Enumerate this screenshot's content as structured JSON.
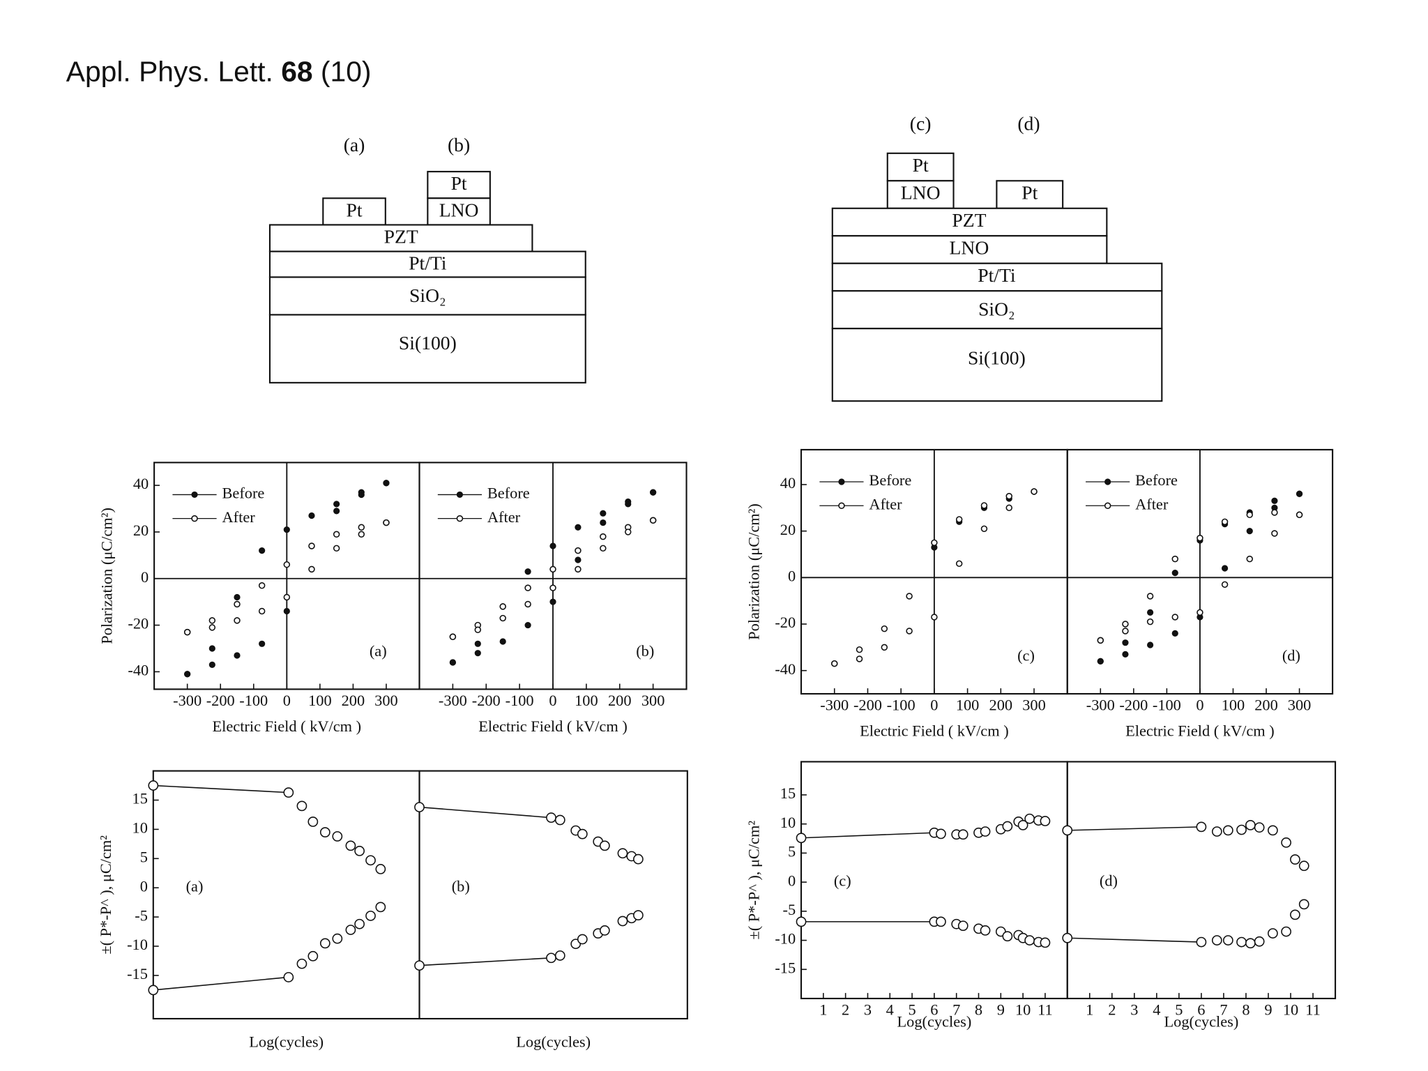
{
  "header": {
    "title_prefix": "Appl. Phys. Lett.",
    "title_volume": "68",
    "title_issue": "(10)"
  },
  "diagrams": [
    {
      "labels": [
        "(a)",
        "(b)"
      ],
      "boxes": [
        "Pt",
        "Pt",
        "LNO",
        "PZT",
        "Pt/Ti",
        "SiO₂",
        "Si(100)"
      ]
    },
    {
      "labels": [
        "(c)",
        "(d)"
      ],
      "boxes": [
        "Pt",
        "LNO",
        "Pt",
        "PZT",
        "LNO",
        "Pt/Ti",
        "SiO₂",
        "Si(100)"
      ]
    }
  ],
  "chart_data": [
    {
      "type": "scatter",
      "panel_label": "(a)",
      "xlabel": "Electric Field ( kV/cm )",
      "ylabel": "Polarization (μC/cm²)",
      "xlim": [
        -400,
        400
      ],
      "ylim": [
        -47.5,
        49.8
      ],
      "xticks": [
        -300,
        -200,
        -100,
        0,
        100,
        200,
        300
      ],
      "yticks": [
        -40,
        -20,
        0,
        20,
        40
      ],
      "legend": true,
      "series": [
        {
          "name": "Before",
          "marker": "filled",
          "color": "#111111",
          "x": [
            300,
            225,
            150,
            75,
            0,
            -75,
            -150,
            -225,
            -300,
            -300,
            -225,
            -150,
            -75,
            0,
            75,
            150,
            225,
            300
          ],
          "values": [
            41,
            37,
            32,
            27,
            21,
            12,
            -8,
            -30,
            -41,
            -41,
            -37,
            -33,
            -28,
            -14,
            14,
            29,
            36,
            41
          ]
        },
        {
          "name": "After",
          "marker": "open",
          "color": "#111111",
          "x": [
            300,
            225,
            150,
            75,
            0,
            -75,
            -150,
            -225,
            -300,
            -300,
            -225,
            -150,
            -75,
            0,
            75,
            150,
            225,
            300
          ],
          "values": [
            24,
            22,
            19,
            14,
            6,
            -3,
            -11,
            -18,
            -23,
            -23,
            -21,
            -18,
            -14,
            -8,
            4,
            13,
            19,
            24
          ]
        }
      ]
    },
    {
      "type": "scatter",
      "panel_label": "(b)",
      "xlabel": "Electric Field ( kV/cm )",
      "xlim": [
        -400,
        400
      ],
      "ylim": [
        -47.5,
        49.8
      ],
      "xticks": [
        -300,
        -200,
        -100,
        0,
        100,
        200,
        300
      ],
      "legend": true,
      "series": [
        {
          "name": "Before",
          "marker": "filled",
          "color": "#111111",
          "x": [
            300,
            225,
            150,
            75,
            0,
            -75,
            -150,
            -225,
            -300,
            -300,
            -225,
            -150,
            -75,
            0,
            75,
            150,
            225,
            300
          ],
          "values": [
            37,
            33,
            28,
            22,
            14,
            3,
            -12,
            -28,
            -36,
            -36,
            -32,
            -27,
            -20,
            -10,
            8,
            24,
            32,
            37
          ]
        },
        {
          "name": "After",
          "marker": "open",
          "color": "#111111",
          "x": [
            300,
            225,
            150,
            75,
            0,
            -75,
            -150,
            -225,
            -300,
            -300,
            -225,
            -150,
            -75,
            0,
            75,
            150,
            225,
            300
          ],
          "values": [
            25,
            22,
            18,
            12,
            4,
            -4,
            -12,
            -20,
            -25,
            -25,
            -22,
            -17,
            -11,
            -4,
            4,
            13,
            20,
            25
          ]
        }
      ]
    },
    {
      "type": "scatter",
      "panel_label": "(c)",
      "xlabel": "Electric Field ( kV/cm )",
      "ylabel": "Polarization (μC/cm²)",
      "xlim": [
        -400,
        400
      ],
      "ylim": [
        -50,
        55
      ],
      "xticks": [
        -300,
        -200,
        -100,
        0,
        100,
        200,
        300
      ],
      "yticks": [
        -40,
        -20,
        0,
        20,
        40
      ],
      "legend": true,
      "series": [
        {
          "name": "Before",
          "marker": "filled",
          "color": "#111111",
          "x": [
            0,
            75,
            150,
            225,
            300
          ],
          "values": [
            13,
            24,
            30,
            34,
            37
          ]
        },
        {
          "name": "After",
          "marker": "open",
          "color": "#111111",
          "x": [
            300,
            225,
            150,
            75,
            0,
            -75,
            -150,
            -225,
            -300,
            -300,
            -225,
            -150,
            -75,
            0,
            75,
            150,
            225,
            300
          ],
          "values": [
            37,
            35,
            31,
            25,
            15,
            -8,
            -22,
            -31,
            -37,
            -37,
            -35,
            -30,
            -23,
            -17,
            6,
            21,
            30,
            37
          ]
        }
      ]
    },
    {
      "type": "scatter",
      "panel_label": "(d)",
      "xlabel": "Electric Field ( kV/cm )",
      "xlim": [
        -400,
        400
      ],
      "ylim": [
        -50,
        55
      ],
      "xticks": [
        -300,
        -200,
        -100,
        0,
        100,
        200,
        300
      ],
      "legend": true,
      "series": [
        {
          "name": "Before",
          "marker": "filled",
          "color": "#111111",
          "x": [
            300,
            225,
            150,
            75,
            0,
            -75,
            -150,
            -225,
            -300,
            -300,
            -225,
            -150,
            -75,
            0,
            75,
            150,
            225,
            300
          ],
          "values": [
            36,
            33,
            28,
            23,
            16,
            2,
            -15,
            -28,
            -36,
            -36,
            -33,
            -29,
            -24,
            -17,
            4,
            20,
            30,
            36
          ]
        },
        {
          "name": "After",
          "marker": "open",
          "color": "#111111",
          "x": [
            300,
            225,
            150,
            75,
            0,
            -75,
            -150,
            -225,
            -300,
            -300,
            -225,
            -150,
            -75,
            0,
            75,
            150,
            225,
            300
          ],
          "values": [
            27,
            28,
            27,
            24,
            17,
            8,
            -8,
            -20,
            -27,
            -27,
            -23,
            -19,
            -17,
            -15,
            -3,
            8,
            19,
            27
          ]
        }
      ]
    },
    {
      "type": "fatigue",
      "panel_label": "(a)",
      "xlabel": "Log(cycles)",
      "ylabel": "±( P*-P^ ),  μC/cm²",
      "xlim": [
        0,
        12
      ],
      "ylim": [
        -22.4,
        20
      ],
      "yticks": [
        -15,
        -10,
        -5,
        0,
        5,
        10,
        15
      ],
      "series": [
        {
          "marker": "open",
          "color": "#111111",
          "x": [
            0,
            6.1,
            6.7,
            7.2,
            7.75,
            8.3,
            8.9,
            9.3,
            9.8,
            10.25
          ],
          "values": [
            17.5,
            16.3,
            14,
            11.3,
            9.5,
            8.8,
            7.2,
            6.3,
            4.7,
            3.2
          ]
        },
        {
          "marker": "open",
          "color": "#111111",
          "x": [
            0,
            6.1,
            6.7,
            7.2,
            7.75,
            8.3,
            8.9,
            9.3,
            9.8,
            10.25
          ],
          "values": [
            -17.5,
            -15.3,
            -13,
            -11.7,
            -9.5,
            -8.7,
            -7.2,
            -6.2,
            -4.8,
            -3.3
          ]
        }
      ]
    },
    {
      "type": "fatigue",
      "panel_label": "(b)",
      "xlabel": "Log(cycles)",
      "xlim": [
        0,
        12
      ],
      "ylim": [
        -22.4,
        20
      ],
      "series": [
        {
          "marker": "open",
          "color": "#111111",
          "x": [
            0,
            5.9,
            6.3,
            7,
            7.3,
            8,
            8.3,
            9.1,
            9.5,
            9.8
          ],
          "values": [
            13.8,
            12,
            11.6,
            9.8,
            9.2,
            7.9,
            7.2,
            5.9,
            5.4,
            4.9
          ]
        },
        {
          "marker": "open",
          "color": "#111111",
          "x": [
            0,
            5.9,
            6.3,
            7,
            7.3,
            8,
            8.3,
            9.1,
            9.5,
            9.8
          ],
          "values": [
            -13.3,
            -12,
            -11.6,
            -9.6,
            -8.8,
            -7.8,
            -7.3,
            -5.7,
            -5.2,
            -4.7
          ]
        }
      ]
    },
    {
      "type": "fatigue",
      "panel_label": "(c)",
      "xlabel": "Log(cycles)",
      "ylabel": "±( P*-P^ ),  μC/cm²",
      "xlim": [
        0,
        12
      ],
      "ylim": [
        -20,
        20.7
      ],
      "xticks": [
        1,
        2,
        3,
        4,
        5,
        6,
        7,
        8,
        9,
        10,
        11
      ],
      "yticks": [
        -15,
        -10,
        -5,
        0,
        5,
        10,
        15
      ],
      "series": [
        {
          "marker": "open",
          "color": "#111111",
          "x": [
            0,
            6,
            6.3,
            7,
            7.3,
            8,
            8.3,
            9,
            9.3,
            9.8,
            10,
            10.3,
            10.7,
            11
          ],
          "values": [
            7.6,
            8.5,
            8.3,
            8.2,
            8.2,
            8.5,
            8.7,
            9.1,
            9.6,
            10.4,
            9.8,
            10.9,
            10.6,
            10.5
          ]
        },
        {
          "marker": "open",
          "color": "#111111",
          "x": [
            0,
            6,
            6.3,
            7,
            7.3,
            8,
            8.3,
            9,
            9.3,
            9.8,
            10,
            10.3,
            10.7,
            11
          ],
          "values": [
            -6.8,
            -6.8,
            -6.8,
            -7.2,
            -7.5,
            -8,
            -8.3,
            -8.5,
            -9.3,
            -9.1,
            -9.6,
            -10,
            -10.3,
            -10.4
          ]
        }
      ]
    },
    {
      "type": "fatigue",
      "panel_label": "(d)",
      "xlabel": "Log(cycles)",
      "xlim": [
        0,
        12
      ],
      "ylim": [
        -20,
        20.7
      ],
      "xticks": [
        1,
        2,
        3,
        4,
        5,
        6,
        7,
        8,
        9,
        10,
        11
      ],
      "series": [
        {
          "marker": "open",
          "color": "#111111",
          "x": [
            0,
            6,
            6.7,
            7.2,
            7.8,
            8.2,
            8.6,
            9.2,
            9.8,
            10.2,
            10.6
          ],
          "values": [
            8.9,
            9.5,
            8.7,
            8.9,
            9,
            9.8,
            9.4,
            8.9,
            6.8,
            3.9,
            2.8
          ]
        },
        {
          "marker": "open",
          "color": "#111111",
          "x": [
            0,
            6,
            6.7,
            7.2,
            7.8,
            8.2,
            8.6,
            9.2,
            9.8,
            10.2,
            10.6
          ],
          "values": [
            -9.6,
            -10.3,
            -10,
            -10,
            -10.3,
            -10.5,
            -10.2,
            -8.8,
            -8.5,
            -5.6,
            -3.8
          ]
        }
      ]
    }
  ]
}
